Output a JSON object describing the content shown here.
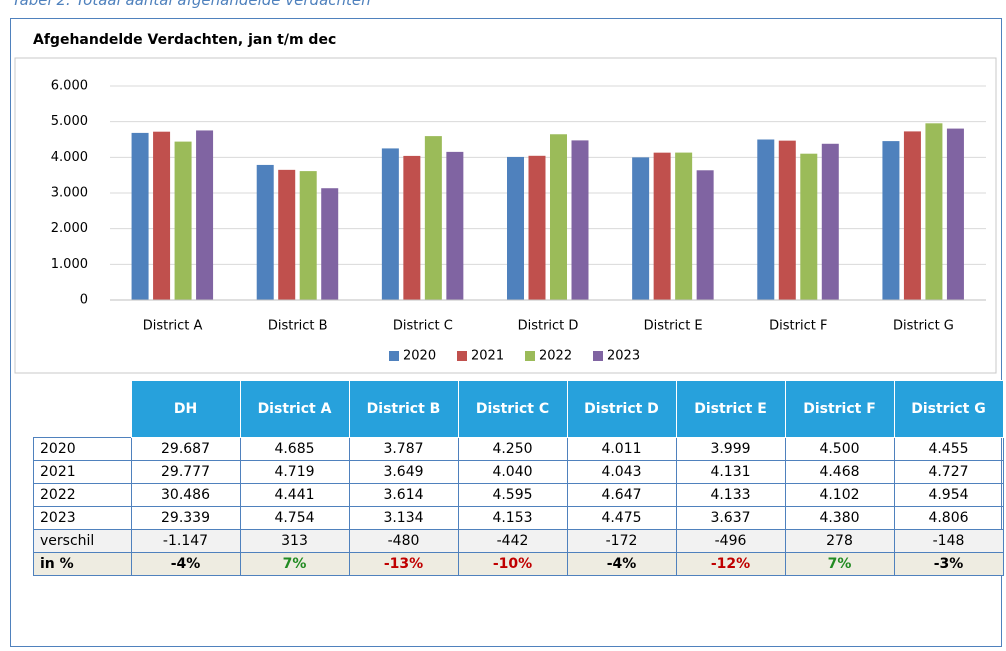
{
  "caption": "Tabel 2: Totaal aantal afgehandelde verdachten",
  "chart_data": {
    "type": "bar",
    "title": "Afgehandelde Verdachten, jan t/m dec",
    "categories": [
      "District A",
      "District B",
      "District C",
      "District D",
      "District E",
      "District F",
      "District G"
    ],
    "series": [
      {
        "name": "2020",
        "color": "#4f81bd",
        "values": [
          4685,
          3787,
          4250,
          4011,
          3999,
          4500,
          4455
        ]
      },
      {
        "name": "2021",
        "color": "#c0504d",
        "values": [
          4719,
          3649,
          4040,
          4043,
          4131,
          4468,
          4727
        ]
      },
      {
        "name": "2022",
        "color": "#9bbb59",
        "values": [
          4441,
          3614,
          4595,
          4647,
          4133,
          4102,
          4954
        ]
      },
      {
        "name": "2023",
        "color": "#8064a2",
        "values": [
          4754,
          3134,
          4153,
          4475,
          3637,
          4380,
          4806
        ]
      }
    ],
    "ylim": [
      0,
      6000
    ],
    "yticks": [
      0,
      {
        "value": 1000,
        "label": "1.000"
      },
      {
        "value": 2000,
        "label": "2.000"
      },
      {
        "value": 3000,
        "label": "3.000"
      },
      {
        "value": 4000,
        "label": "4.000"
      },
      {
        "value": 5000,
        "label": "5.000"
      },
      {
        "value": 6000,
        "label": "6.000"
      }
    ],
    "grid": true,
    "legend": "bottom"
  },
  "table": {
    "header": [
      "DH",
      "District A",
      "District B",
      "District C",
      "District D",
      "District E",
      "District F",
      "District G"
    ],
    "rows": [
      {
        "label": "2020",
        "cells": [
          "29.687",
          "4.685",
          "3.787",
          "4.250",
          "4.011",
          "3.999",
          "4.500",
          "4.455"
        ]
      },
      {
        "label": "2021",
        "cells": [
          "29.777",
          "4.719",
          "3.649",
          "4.040",
          "4.043",
          "4.131",
          "4.468",
          "4.727"
        ]
      },
      {
        "label": "2022",
        "cells": [
          "30.486",
          "4.441",
          "3.614",
          "4.595",
          "4.647",
          "4.133",
          "4.102",
          "4.954"
        ]
      },
      {
        "label": "2023",
        "cells": [
          "29.339",
          "4.754",
          "3.134",
          "4.153",
          "4.475",
          "3.637",
          "4.380",
          "4.806"
        ]
      },
      {
        "label": "verschil",
        "background": "#f2f2f2",
        "cells": [
          "-1.147",
          "313",
          "-480",
          "-442",
          "-172",
          "-496",
          "278",
          "-148"
        ]
      },
      {
        "label": "in %",
        "background": "#eeece1",
        "bold": true,
        "cells": [
          "-4%",
          "7%",
          "-13%",
          "-10%",
          "-4%",
          "-12%",
          "7%",
          "-3%"
        ],
        "colors": [
          "#000000",
          "#228b22",
          "#c00000",
          "#c00000",
          "#000000",
          "#c00000",
          "#228b22",
          "#000000"
        ]
      }
    ]
  }
}
